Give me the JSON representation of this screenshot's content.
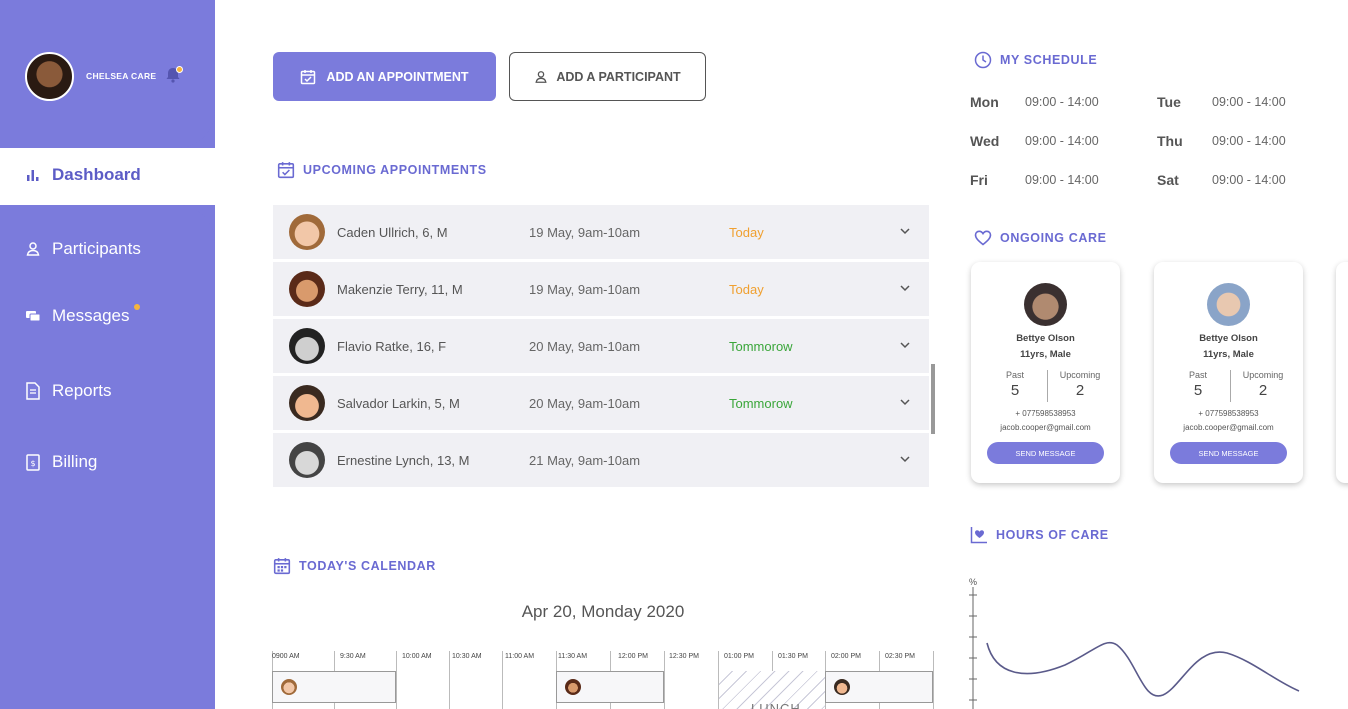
{
  "profile": {
    "name": "CHELSEA CARE"
  },
  "nav": {
    "items": [
      {
        "label": "Dashboard",
        "icon": "bar-chart-icon",
        "active": true
      },
      {
        "label": "Participants",
        "icon": "person-icon"
      },
      {
        "label": "Messages",
        "icon": "chat-icon",
        "has_notification": true
      },
      {
        "label": "Reports",
        "icon": "document-icon"
      },
      {
        "label": "Billing",
        "icon": "billing-icon"
      }
    ]
  },
  "actions": {
    "add_appointment": "ADD AN APPOINTMENT",
    "add_participant": "ADD A PARTICIPANT"
  },
  "upcoming": {
    "title": "UPCOMING APPOINTMENTS",
    "rows": [
      {
        "name": "Caden Ullrich, 6, M",
        "date": "19 May, 9am-10am",
        "status": "Today",
        "status_color": "#f0a030"
      },
      {
        "name": "Makenzie Terry, 11, M",
        "date": "19 May, 9am-10am",
        "status": "Today",
        "status_color": "#f0a030"
      },
      {
        "name": "Flavio Ratke, 16, F",
        "date": "20 May, 9am-10am",
        "status": "Tommorow",
        "status_color": "#3aa63a"
      },
      {
        "name": "Salvador Larkin, 5, M",
        "date": "20 May, 9am-10am",
        "status": "Tommorow",
        "status_color": "#3aa63a"
      },
      {
        "name": "Ernestine Lynch, 13, M",
        "date": "21 May, 9am-10am",
        "status": "",
        "status_color": "#666666"
      }
    ]
  },
  "calendar": {
    "title": "TODAY'S CALENDAR",
    "date": "Apr 20, Monday 2020",
    "slots": [
      "0900 AM",
      "9:30 AM",
      "10:00 AM",
      "10:30 AM",
      "11:00 AM",
      "11:30 AM",
      "12:00 PM",
      "12:30 PM",
      "01:00 PM",
      "01:30 PM",
      "02:00 PM",
      "02:30 PM"
    ],
    "lunch_label": "LUNCH"
  },
  "schedule": {
    "title": "MY SCHEDULE",
    "days": [
      {
        "day": "Mon",
        "time": "09:00 - 14:00"
      },
      {
        "day": "Tue",
        "time": "09:00 - 14:00"
      },
      {
        "day": "Wed",
        "time": "09:00 - 14:00"
      },
      {
        "day": "Thu",
        "time": "09:00 - 14:00"
      },
      {
        "day": "Fri",
        "time": "09:00 - 14:00"
      },
      {
        "day": "Sat",
        "time": "09:00 - 14:00"
      }
    ]
  },
  "ongoing": {
    "title": "ONGOING CARE",
    "cards": [
      {
        "name": "Bettye Olson",
        "age": "11yrs, Male",
        "past_label": "Past",
        "past": "5",
        "upcoming_label": "Upcoming",
        "upcoming": "2",
        "phone": "+ 077598538953",
        "email": "jacob.cooper@gmail.com",
        "button": "SEND MESSAGE"
      },
      {
        "name": "Bettye Olson",
        "age": "11yrs, Male",
        "past_label": "Past",
        "past": "5",
        "upcoming_label": "Upcoming",
        "upcoming": "2",
        "phone": "+ 077598538953",
        "email": "jacob.cooper@gmail.com",
        "button": "SEND MESSAGE"
      }
    ]
  },
  "hours": {
    "title": "HOURS OF CARE",
    "unit": "%"
  },
  "colors": {
    "accent": "#7b7bdc",
    "accent_dark": "#6a6ad2",
    "today": "#f0a030",
    "tomorrow": "#3aa63a"
  }
}
